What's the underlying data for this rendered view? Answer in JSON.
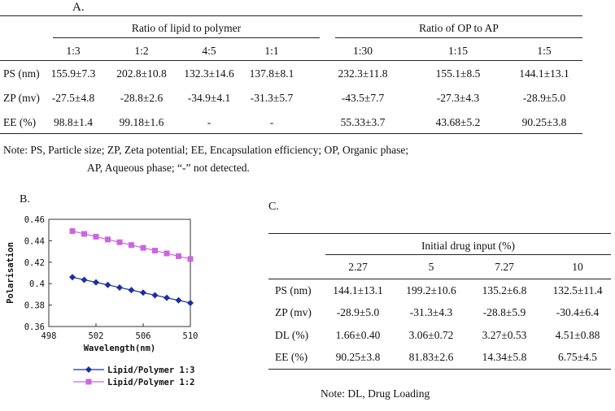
{
  "table_a": {
    "label": "A.",
    "group_left": "Ratio of lipid to polymer",
    "group_right": "Ratio of OP to AP",
    "columns": [
      "1:3",
      "1:2",
      "4:5",
      "1:1",
      "1:30",
      "1:15",
      "1:5"
    ],
    "rows": [
      {
        "label": "PS (nm)",
        "cells": [
          "155.9±7.3",
          "202.8±10.8",
          "132.3±14.6",
          "137.8±8.1",
          "232.3±11.8",
          "155.1±8.5",
          "144.1±13.1"
        ]
      },
      {
        "label": "ZP (mv)",
        "cells": [
          "-27.5±4.8",
          "-28.8±2.6",
          "-34.9±4.1",
          "-31.3±5.7",
          "-43.5±7.7",
          "-27.3±4.3",
          "-28.9±5.0"
        ]
      },
      {
        "label": "EE (%)",
        "cells": [
          "98.8±1.4",
          "99.18±1.6",
          "-",
          "-",
          "55.33±3.7",
          "43.68±5.2",
          "90.25±3.8"
        ]
      }
    ],
    "note_line1": "Note: PS, Particle size; ZP, Zeta potential; EE, Encapsulation efficiency; OP, Organic phase;",
    "note_line2": "AP, Aqueous phase; “-” not detected."
  },
  "chart_b": {
    "label": "B."
  },
  "chart_data": {
    "type": "line",
    "title": "",
    "xlabel": "Wavelength(nm)",
    "ylabel": "Polarisation",
    "xlim": [
      498,
      510
    ],
    "ylim": [
      0.36,
      0.46
    ],
    "xticks": [
      498,
      502,
      506,
      510
    ],
    "xtick_labels": [
      "498",
      "502",
      "506",
      "510"
    ],
    "yticks": [
      0.36,
      0.38,
      0.4,
      0.42,
      0.44,
      0.46
    ],
    "ytick_labels": [
      "0.36",
      "0.38",
      "0.4",
      "0.42",
      "0.44",
      "0.46"
    ],
    "x": [
      500,
      501,
      502,
      503,
      504,
      505,
      506,
      507,
      508,
      509,
      510
    ],
    "series": [
      {
        "name": "Lipid/Polymer 1:3",
        "color": "#1c2fa0",
        "marker": "diamond",
        "values": [
          0.406,
          0.4036,
          0.4012,
          0.3988,
          0.3964,
          0.394,
          0.3916,
          0.3892,
          0.3868,
          0.3844,
          0.382
        ]
      },
      {
        "name": "Lipid/Polymer 1:2",
        "color": "#cc66e0",
        "marker": "square",
        "values": [
          0.449,
          0.4464,
          0.4438,
          0.4412,
          0.4386,
          0.436,
          0.4334,
          0.4308,
          0.4282,
          0.4256,
          0.423
        ]
      }
    ],
    "grid": false,
    "legend": "bottom"
  },
  "table_c": {
    "label": "C.",
    "group": "Initial drug input (%)",
    "columns": [
      "2.27",
      "5",
      "7.27",
      "10"
    ],
    "rows": [
      {
        "label": "PS (nm)",
        "cells": [
          "144.1±13.1",
          "199.2±10.6",
          "135.2±6.8",
          "132.5±11.4"
        ]
      },
      {
        "label": "ZP (mv)",
        "cells": [
          "-28.9±5.0",
          "-31.3±4.3",
          "-28.8±5.9",
          "-30.4±6.4"
        ]
      },
      {
        "label": "DL (%)",
        "cells": [
          "1.66±0.40",
          "3.06±0.72",
          "3.27±0.53",
          "4.51±0.88"
        ]
      },
      {
        "label": "EE (%)",
        "cells": [
          "90.25±3.8",
          "81.83±2.6",
          "14.34±5.8",
          "6.75±4.5"
        ]
      }
    ],
    "note": "Note: DL, Drug Loading"
  }
}
